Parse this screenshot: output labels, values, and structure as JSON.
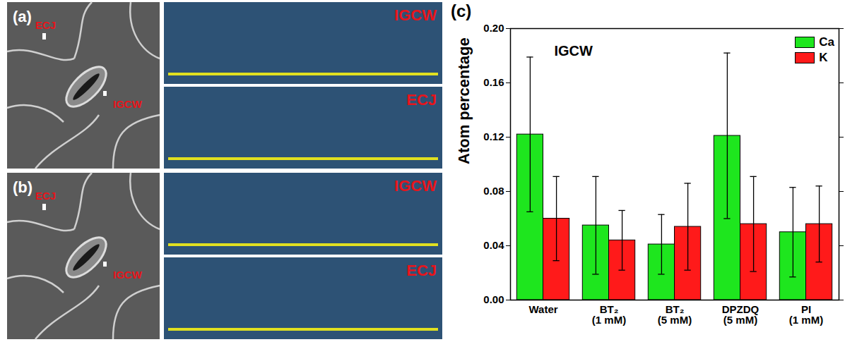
{
  "panels": [
    {
      "label": "(a)",
      "image_labels": [
        "ECJ",
        "IGCW"
      ],
      "spectra": [
        "IGCW",
        "ECJ"
      ]
    },
    {
      "label": "(b)",
      "image_labels": [
        "ECJ",
        "IGCW"
      ],
      "spectra": [
        "IGCW",
        "ECJ"
      ]
    }
  ],
  "chart_data": {
    "type": "bar",
    "label": "(c)",
    "title": "IGCW",
    "y_label": "Atom percentage",
    "categories": [
      "Water",
      "BT₂ (1 mM)",
      "BT₂ (5 mM)",
      "DPZDQ (5 mM)",
      "PI (1 mM)"
    ],
    "series": [
      {
        "name": "Ca",
        "color": "#1ee61e",
        "values": [
          0.122,
          0.055,
          0.041,
          0.121,
          0.05
        ],
        "errors": [
          0.057,
          0.036,
          0.022,
          0.061,
          0.033
        ]
      },
      {
        "name": "K",
        "color": "#ff1a1a",
        "values": [
          0.06,
          0.044,
          0.054,
          0.056,
          0.056
        ],
        "errors": [
          0.031,
          0.022,
          0.032,
          0.035,
          0.028
        ]
      }
    ],
    "ylim": [
      0,
      0.2
    ],
    "yticks": [
      {
        "value": 0,
        "label": "0.00"
      },
      {
        "value": 0.04,
        "label": "0.04"
      },
      {
        "value": 0.08,
        "label": "0.08"
      },
      {
        "value": 0.12,
        "label": "0.12"
      },
      {
        "value": 0.16,
        "label": "0.16"
      },
      {
        "value": 0.2,
        "label": "0.20"
      }
    ],
    "legend": "top-right",
    "grid": false
  }
}
